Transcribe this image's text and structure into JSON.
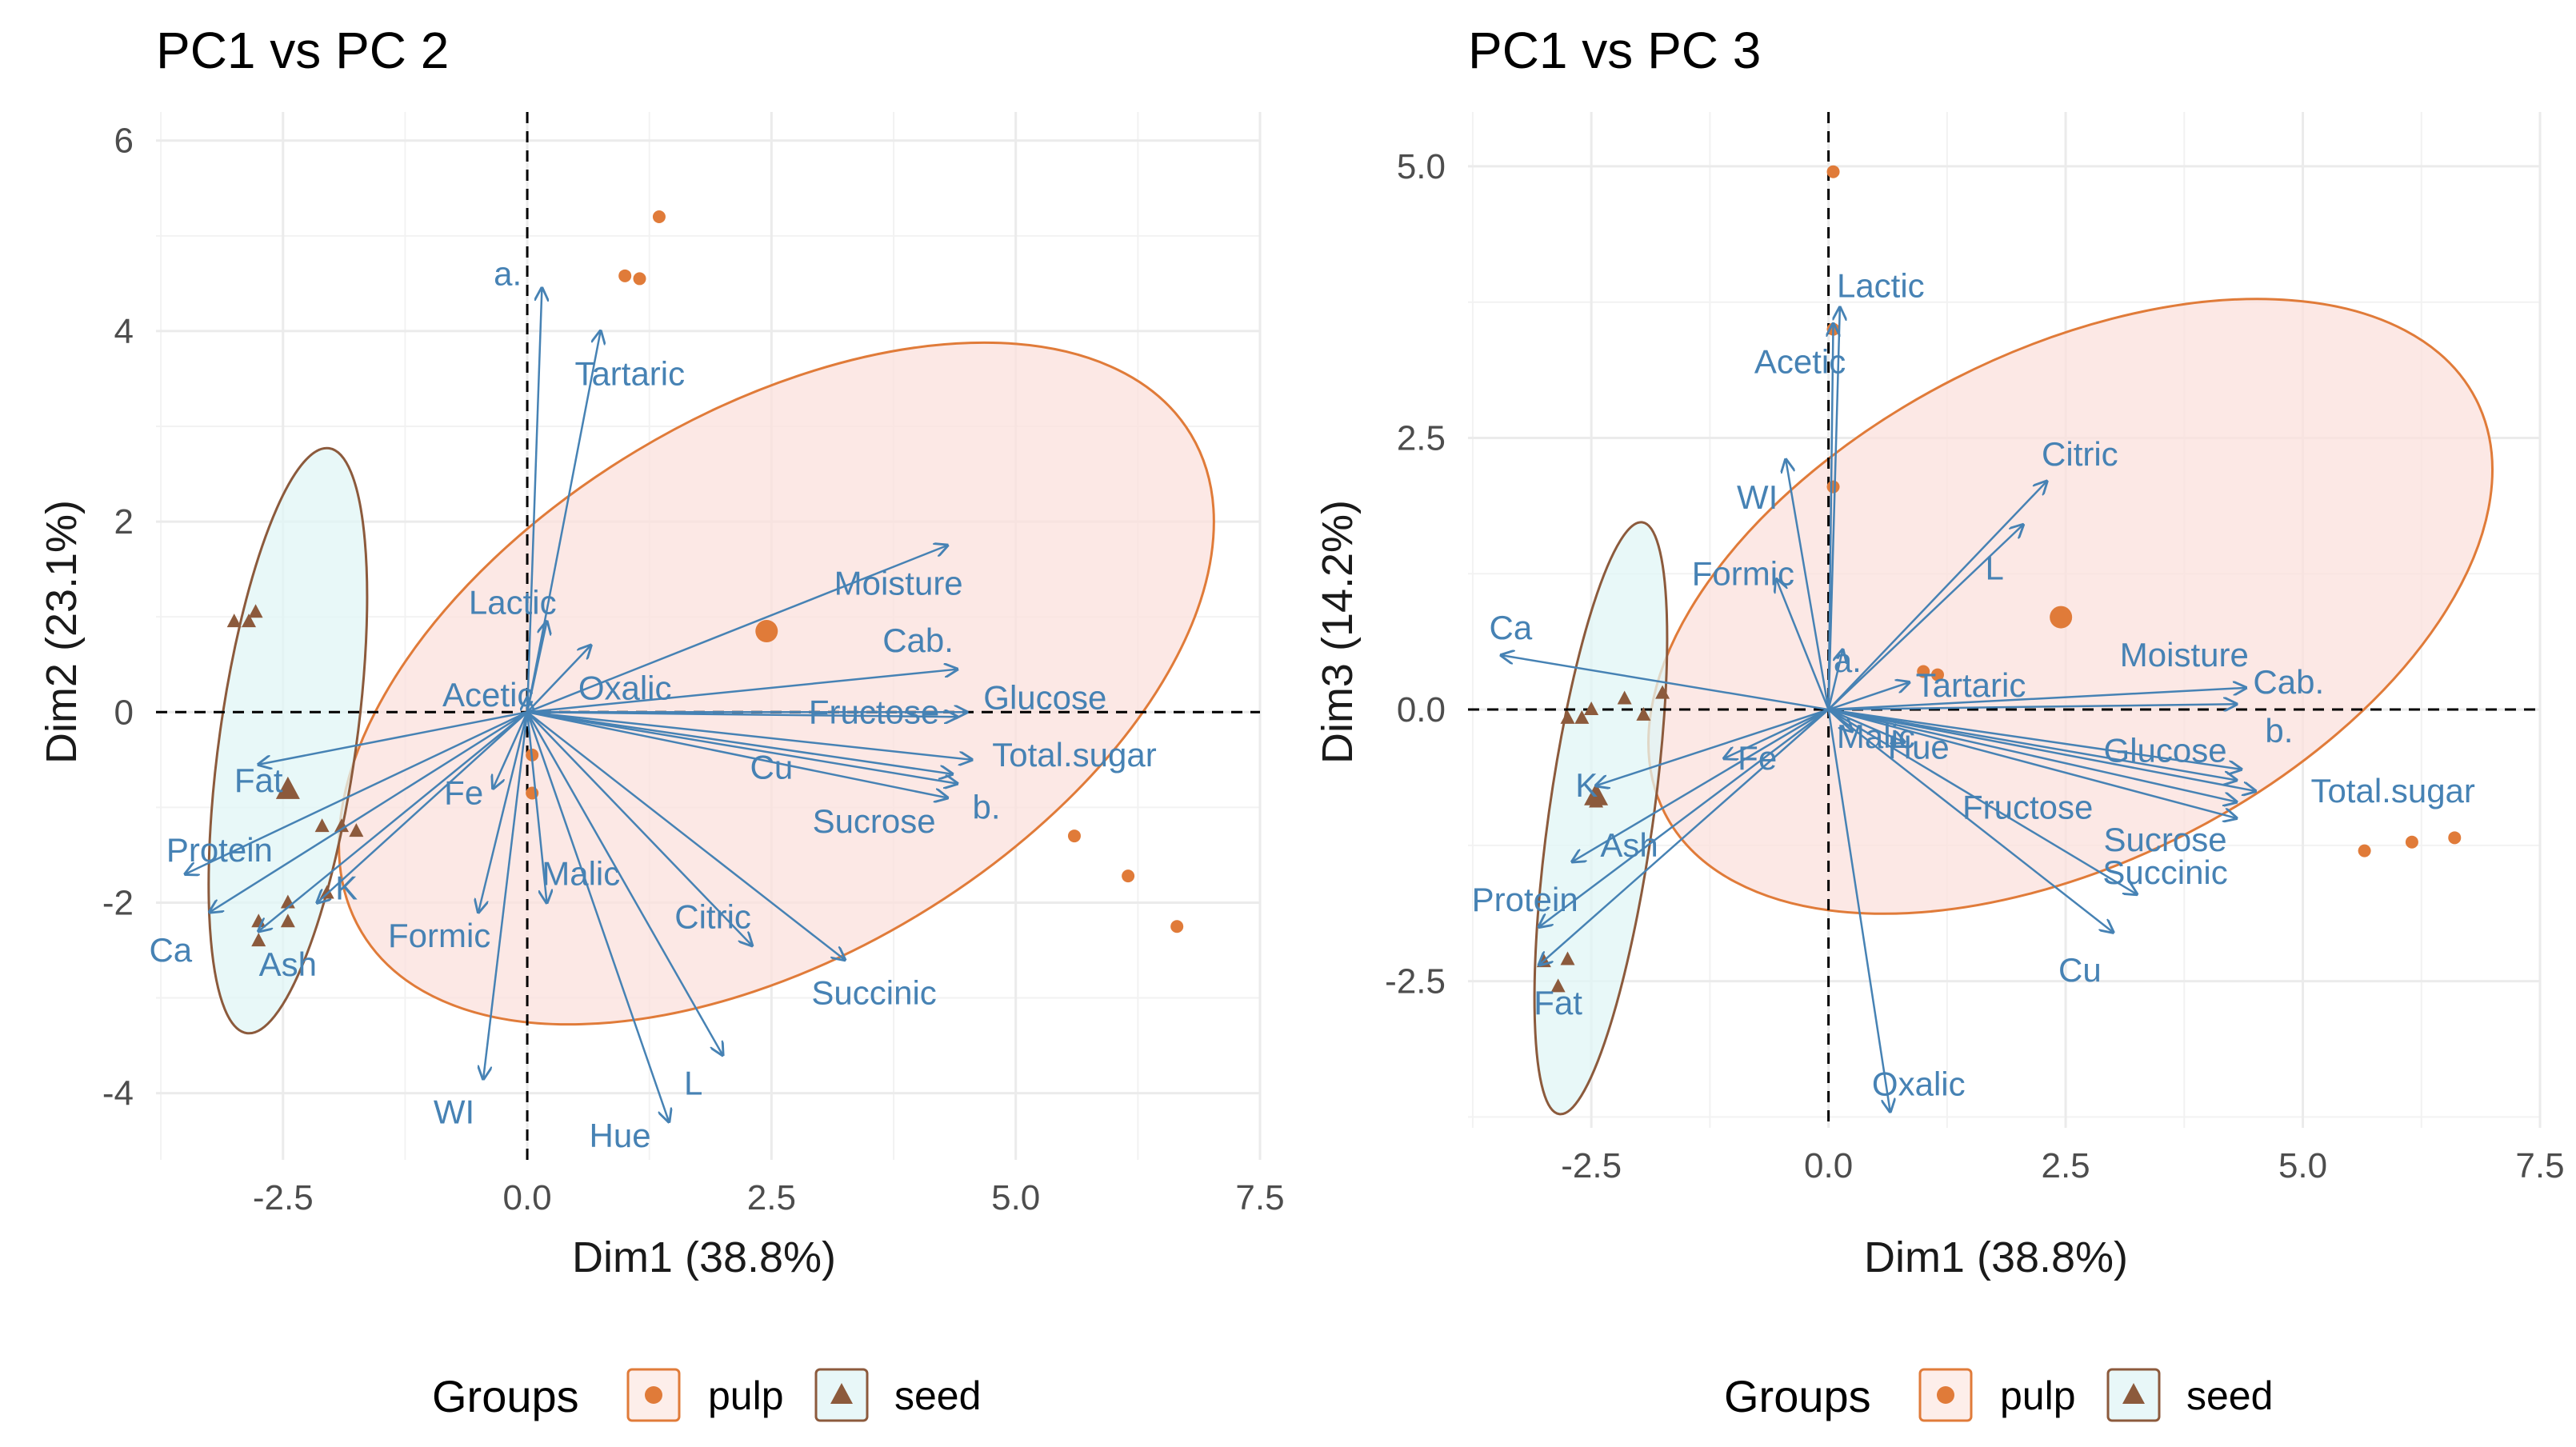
{
  "chart_data": [
    {
      "type": "scatter",
      "title": "PC1 vs PC 2",
      "xlabel": "Dim1 (38.8%)",
      "ylabel": "Dim2 (23.1%)",
      "xlim": [
        -3.8,
        7.5
      ],
      "ylim": [
        -4.7,
        6.3
      ],
      "xticks": [
        -2.5,
        0.0,
        2.5,
        5.0,
        7.5
      ],
      "xtick_labels": [
        "-2.5",
        "0.0",
        "2.5",
        "5.0",
        "7.5"
      ],
      "yticks": [
        -4,
        -2,
        0,
        2,
        4,
        6
      ],
      "ytick_labels": [
        "-4",
        "-2",
        "0",
        "2",
        "4",
        "6"
      ],
      "grid": true,
      "series": [
        {
          "name": "pulp",
          "marker": "circle",
          "color": "#e07b39",
          "points": [
            [
              1.35,
              5.2
            ],
            [
              1.0,
              4.58
            ],
            [
              1.15,
              4.55
            ],
            [
              0.05,
              -0.45
            ],
            [
              0.05,
              -0.85
            ],
            [
              5.6,
              -1.3
            ],
            [
              6.15,
              -1.72
            ],
            [
              6.65,
              -2.25
            ]
          ],
          "centroid": [
            2.45,
            0.85
          ],
          "ellipse": {
            "cx": 2.55,
            "cy": 0.3,
            "rx": 4.95,
            "ry": 2.85,
            "angle_deg": -31,
            "fill": "#fbe0dc",
            "stroke": "#e07b39"
          }
        },
        {
          "name": "seed",
          "marker": "triangle",
          "color": "#8c5a3c",
          "points": [
            [
              -3.0,
              0.95
            ],
            [
              -2.85,
              0.95
            ],
            [
              -2.78,
              1.05
            ],
            [
              -2.1,
              -1.2
            ],
            [
              -1.9,
              -1.2
            ],
            [
              -1.75,
              -1.25
            ],
            [
              -2.05,
              -1.9
            ],
            [
              -2.45,
              -2.0
            ],
            [
              -2.45,
              -2.2
            ],
            [
              -2.75,
              -2.2
            ],
            [
              -2.75,
              -2.4
            ]
          ],
          "centroid": [
            -2.45,
            -0.82
          ],
          "ellipse": {
            "cx": -2.45,
            "cy": -0.3,
            "rx": 0.7,
            "ry": 3.1,
            "angle_deg": 8,
            "fill": "#e0f5f6",
            "stroke": "#8c5a3c"
          }
        }
      ],
      "variables": [
        {
          "label": "a.",
          "x": 0.15,
          "y": 4.45,
          "lx": -0.2,
          "ly": 4.6
        },
        {
          "label": "Tartaric",
          "x": 0.75,
          "y": 4.0,
          "lx": 1.05,
          "ly": 3.55
        },
        {
          "label": "Lactic",
          "x": 0.2,
          "y": 0.95,
          "lx": -0.15,
          "ly": 1.15
        },
        {
          "label": "Acetic",
          "x": 0.0,
          "y": 0.15,
          "lx": -0.4,
          "ly": 0.18
        },
        {
          "label": "Oxalic",
          "x": 0.65,
          "y": 0.7,
          "lx": 1.0,
          "ly": 0.25
        },
        {
          "label": "Moisture",
          "x": 4.3,
          "y": 1.75,
          "lx": 3.8,
          "ly": 1.35
        },
        {
          "label": "Cab.",
          "x": 4.4,
          "y": 0.45,
          "lx": 4.0,
          "ly": 0.75
        },
        {
          "label": "Glucose",
          "x": 4.5,
          "y": 0.0,
          "lx": 5.3,
          "ly": 0.15
        },
        {
          "label": "Fructose",
          "x": 4.4,
          "y": -0.05,
          "lx": 3.55,
          "ly": 0.0
        },
        {
          "label": "Total.sugar",
          "x": 4.55,
          "y": -0.5,
          "lx": 5.6,
          "ly": -0.45
        },
        {
          "label": "Cu",
          "x": 4.35,
          "y": -0.65,
          "lx": 2.5,
          "ly": -0.58
        },
        {
          "label": "b.",
          "x": 4.4,
          "y": -0.75,
          "lx": 4.7,
          "ly": -1.0
        },
        {
          "label": "Sucrose",
          "x": 4.3,
          "y": -0.9,
          "lx": 3.55,
          "ly": -1.15
        },
        {
          "label": "Succinic",
          "x": 3.25,
          "y": -2.6,
          "lx": 3.55,
          "ly": -2.95
        },
        {
          "label": "Citric",
          "x": 2.3,
          "y": -2.45,
          "lx": 1.9,
          "ly": -2.15
        },
        {
          "label": "L",
          "x": 2.0,
          "y": -3.6,
          "lx": 1.7,
          "ly": -3.9
        },
        {
          "label": "Hue",
          "x": 1.45,
          "y": -4.3,
          "lx": 0.95,
          "ly": -4.45
        },
        {
          "label": "Malic",
          "x": 0.2,
          "y": -2.0,
          "lx": 0.55,
          "ly": -1.7
        },
        {
          "label": "WI",
          "x": -0.45,
          "y": -3.85,
          "lx": -0.75,
          "ly": -4.2
        },
        {
          "label": "Formic",
          "x": -0.5,
          "y": -2.1,
          "lx": -0.9,
          "ly": -2.35
        },
        {
          "label": "Fe",
          "x": -0.35,
          "y": -0.8,
          "lx": -0.65,
          "ly": -0.85
        },
        {
          "label": "Fat",
          "x": -2.75,
          "y": -0.55,
          "lx": -2.75,
          "ly": -0.72
        },
        {
          "label": "Protein",
          "x": -3.5,
          "y": -1.7,
          "lx": -3.15,
          "ly": -1.45
        },
        {
          "label": "K",
          "x": -2.15,
          "y": -2.0,
          "lx": -1.85,
          "ly": -1.85
        },
        {
          "label": "Ca",
          "x": -3.25,
          "y": -2.1,
          "lx": -3.65,
          "ly": -2.5
        },
        {
          "label": "Ash",
          "x": -2.75,
          "y": -2.3,
          "lx": -2.45,
          "ly": -2.65
        }
      ]
    },
    {
      "type": "scatter",
      "title": "PC1 vs PC 3",
      "xlabel": "Dim1 (38.8%)",
      "ylabel": "Dim3 (14.2%)",
      "xlim": [
        -3.8,
        7.5
      ],
      "ylim": [
        -3.85,
        5.5
      ],
      "xticks": [
        -2.5,
        0.0,
        2.5,
        5.0,
        7.5
      ],
      "xtick_labels": [
        "-2.5",
        "0.0",
        "2.5",
        "5.0",
        "7.5"
      ],
      "yticks": [
        -2.5,
        0.0,
        2.5,
        5.0
      ],
      "ytick_labels": [
        "-2.5",
        "0.0",
        "2.5",
        "5.0"
      ],
      "grid": true,
      "series": [
        {
          "name": "pulp",
          "marker": "circle",
          "color": "#e07b39",
          "points": [
            [
              0.05,
              4.95
            ],
            [
              0.05,
              3.5
            ],
            [
              0.05,
              2.05
            ],
            [
              1.0,
              0.35
            ],
            [
              1.15,
              0.32
            ],
            [
              5.65,
              -1.3
            ],
            [
              6.15,
              -1.22
            ],
            [
              6.6,
              -1.18
            ]
          ],
          "centroid": [
            2.45,
            0.85
          ],
          "ellipse": {
            "cx": 2.55,
            "cy": 0.95,
            "rx": 4.8,
            "ry": 2.35,
            "angle_deg": -27,
            "fill": "#fbe0dc",
            "stroke": "#e07b39"
          }
        },
        {
          "name": "seed",
          "marker": "triangle",
          "color": "#8c5a3c",
          "points": [
            [
              -1.75,
              0.15
            ],
            [
              -2.15,
              0.1
            ],
            [
              -2.5,
              0.0
            ],
            [
              -2.75,
              -0.08
            ],
            [
              -2.6,
              -0.08
            ],
            [
              -1.95,
              -0.05
            ],
            [
              -2.45,
              -0.85
            ],
            [
              -2.75,
              -2.3
            ],
            [
              -3.0,
              -2.32
            ],
            [
              -2.85,
              -2.55
            ]
          ],
          "centroid": [
            -2.45,
            -0.8
          ],
          "ellipse": {
            "cx": -2.4,
            "cy": -1.0,
            "rx": 0.55,
            "ry": 2.75,
            "angle_deg": 8,
            "fill": "#e0f5f6",
            "stroke": "#8c5a3c"
          }
        }
      ],
      "variables": [
        {
          "label": "Lactic",
          "x": 0.12,
          "y": 3.7,
          "lx": 0.55,
          "ly": 3.9
        },
        {
          "label": "Acetic",
          "x": 0.05,
          "y": 3.55,
          "lx": -0.3,
          "ly": 3.2
        },
        {
          "label": "Citric",
          "x": 2.3,
          "y": 2.1,
          "lx": 2.65,
          "ly": 2.35
        },
        {
          "label": "WI",
          "x": -0.45,
          "y": 2.3,
          "lx": -0.75,
          "ly": 1.95
        },
        {
          "label": "L",
          "x": 2.05,
          "y": 1.7,
          "lx": 1.75,
          "ly": 1.3
        },
        {
          "label": "Formic",
          "x": -0.55,
          "y": 1.2,
          "lx": -0.9,
          "ly": 1.25
        },
        {
          "label": "a.",
          "x": 0.15,
          "y": 0.55,
          "lx": 0.2,
          "ly": 0.45
        },
        {
          "label": "Ca",
          "x": -3.45,
          "y": 0.5,
          "lx": -3.35,
          "ly": 0.75
        },
        {
          "label": "Tartaric",
          "x": 0.85,
          "y": 0.25,
          "lx": 1.5,
          "ly": 0.22
        },
        {
          "label": "Moisture",
          "x": 4.4,
          "y": 0.2,
          "lx": 3.75,
          "ly": 0.5
        },
        {
          "label": "Cab.",
          "x": 4.3,
          "y": 0.05,
          "lx": 4.85,
          "ly": 0.25
        },
        {
          "label": "b.",
          "x": 4.35,
          "y": -0.55,
          "lx": 4.75,
          "ly": -0.2
        },
        {
          "label": "Malic",
          "x": 0.25,
          "y": -0.2,
          "lx": 0.5,
          "ly": -0.25
        },
        {
          "label": "Hue",
          "x": 0.8,
          "y": -0.3,
          "lx": 0.95,
          "ly": -0.35
        },
        {
          "label": "Glucose",
          "x": 4.3,
          "y": -0.65,
          "lx": 3.55,
          "ly": -0.38
        },
        {
          "label": "Total.sugar",
          "x": 4.5,
          "y": -0.75,
          "lx": 5.95,
          "ly": -0.75
        },
        {
          "label": "Fe",
          "x": -1.1,
          "y": -0.45,
          "lx": -0.75,
          "ly": -0.45
        },
        {
          "label": "Fructose",
          "x": 4.3,
          "y": -0.85,
          "lx": 2.1,
          "ly": -0.9
        },
        {
          "label": "Sucrose",
          "x": 4.3,
          "y": -1.0,
          "lx": 3.55,
          "ly": -1.2
        },
        {
          "label": "Succinic",
          "x": 3.25,
          "y": -1.7,
          "lx": 3.55,
          "ly": -1.5
        },
        {
          "label": "Cu",
          "x": 3.0,
          "y": -2.05,
          "lx": 2.65,
          "ly": -2.4
        },
        {
          "label": "Oxalic",
          "x": 0.65,
          "y": -3.7,
          "lx": 0.95,
          "ly": -3.45
        },
        {
          "label": "K",
          "x": -2.45,
          "y": -0.7,
          "lx": -2.55,
          "ly": -0.7
        },
        {
          "label": "Ash",
          "x": -2.7,
          "y": -1.4,
          "lx": -2.1,
          "ly": -1.25
        },
        {
          "label": "Protein",
          "x": -3.05,
          "y": -2.0,
          "lx": -3.2,
          "ly": -1.75
        },
        {
          "label": "Fat",
          "x": -3.05,
          "y": -2.35,
          "lx": -2.85,
          "ly": -2.7
        }
      ]
    }
  ],
  "legend": {
    "title": "Groups",
    "items": [
      {
        "label": "pulp",
        "marker": "circle",
        "color": "#e07b39"
      },
      {
        "label": "seed",
        "marker": "triangle",
        "color": "#8c5a3c"
      }
    ]
  },
  "colors": {
    "variable_arrow": "#4682b4",
    "grid": "#ebebeb",
    "reference_line": "#000000"
  }
}
